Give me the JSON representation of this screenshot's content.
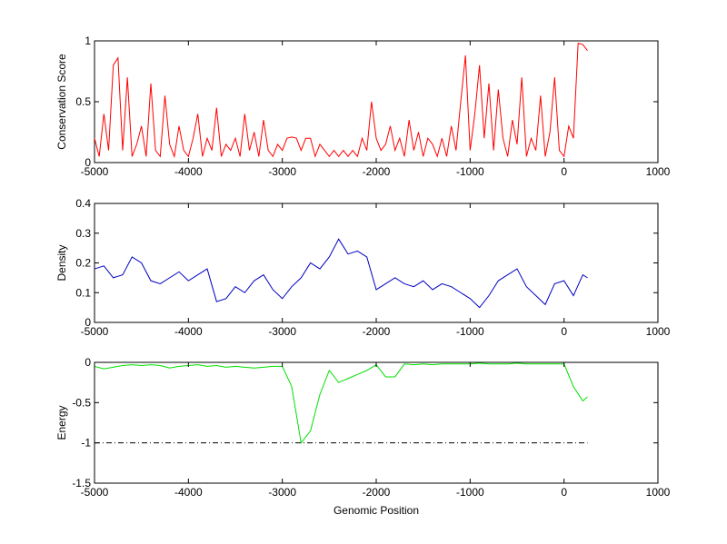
{
  "chart_data": [
    {
      "type": "line",
      "ylabel": "Conservation Score",
      "x": [
        -5000,
        -4950,
        -4900,
        -4850,
        -4800,
        -4750,
        -4700,
        -4650,
        -4600,
        -4550,
        -4500,
        -4450,
        -4400,
        -4350,
        -4300,
        -4250,
        -4200,
        -4150,
        -4100,
        -4050,
        -4000,
        -3950,
        -3900,
        -3850,
        -3800,
        -3750,
        -3700,
        -3650,
        -3600,
        -3550,
        -3500,
        -3450,
        -3400,
        -3350,
        -3300,
        -3250,
        -3200,
        -3150,
        -3100,
        -3050,
        -3000,
        -2950,
        -2900,
        -2850,
        -2800,
        -2750,
        -2700,
        -2650,
        -2600,
        -2550,
        -2500,
        -2450,
        -2400,
        -2350,
        -2300,
        -2250,
        -2200,
        -2150,
        -2100,
        -2050,
        -2000,
        -1950,
        -1900,
        -1850,
        -1800,
        -1750,
        -1700,
        -1650,
        -1600,
        -1550,
        -1500,
        -1450,
        -1400,
        -1350,
        -1300,
        -1250,
        -1200,
        -1150,
        -1100,
        -1050,
        -1000,
        -950,
        -900,
        -850,
        -800,
        -750,
        -700,
        -650,
        -600,
        -550,
        -500,
        -450,
        -400,
        -350,
        -300,
        -250,
        -200,
        -150,
        -100,
        -50,
        0,
        50,
        100,
        150,
        200,
        250
      ],
      "series": [
        {
          "color": "#ff0000",
          "values": [
            0.2,
            0.05,
            0.4,
            0.1,
            0.8,
            0.86,
            0.1,
            0.7,
            0.05,
            0.15,
            0.3,
            0.05,
            0.65,
            0.1,
            0.05,
            0.55,
            0.15,
            0.05,
            0.3,
            0.1,
            0.05,
            0.2,
            0.4,
            0.05,
            0.2,
            0.1,
            0.45,
            0.05,
            0.15,
            0.1,
            0.2,
            0.05,
            0.4,
            0.1,
            0.25,
            0.05,
            0.35,
            0.1,
            0.05,
            0.15,
            0.1,
            0.2,
            0.21,
            0.2,
            0.1,
            0.2,
            0.2,
            0.05,
            0.15,
            0.1,
            0.05,
            0.1,
            0.05,
            0.1,
            0.05,
            0.1,
            0.05,
            0.2,
            0.1,
            0.5,
            0.2,
            0.1,
            0.15,
            0.3,
            0.1,
            0.2,
            0.05,
            0.35,
            0.1,
            0.25,
            0.05,
            0.2,
            0.15,
            0.05,
            0.2,
            0.05,
            0.3,
            0.1,
            0.5,
            0.88,
            0.1,
            0.4,
            0.8,
            0.2,
            0.65,
            0.1,
            0.6,
            0.2,
            0.05,
            0.35,
            0.15,
            0.7,
            0.05,
            0.2,
            0.1,
            0.55,
            0.05,
            0.25,
            0.7,
            0.1,
            0.05,
            0.3,
            0.2,
            0.98,
            0.97,
            0.92
          ]
        }
      ],
      "xlim": [
        -5000,
        1000
      ],
      "xticks": [
        -5000,
        -4000,
        -3000,
        -2000,
        -1000,
        0,
        1000
      ],
      "ylim": [
        0,
        1
      ],
      "yticks": [
        0,
        0.5,
        1
      ]
    },
    {
      "type": "line",
      "ylabel": "Density",
      "x": [
        -5000,
        -4900,
        -4800,
        -4700,
        -4600,
        -4500,
        -4400,
        -4300,
        -4200,
        -4100,
        -4000,
        -3900,
        -3800,
        -3700,
        -3600,
        -3500,
        -3400,
        -3300,
        -3200,
        -3100,
        -3000,
        -2900,
        -2800,
        -2700,
        -2600,
        -2500,
        -2400,
        -2300,
        -2200,
        -2100,
        -2000,
        -1900,
        -1800,
        -1700,
        -1600,
        -1500,
        -1400,
        -1300,
        -1200,
        -1100,
        -1000,
        -900,
        -800,
        -700,
        -600,
        -500,
        -400,
        -300,
        -200,
        -100,
        0,
        100,
        200,
        250
      ],
      "series": [
        {
          "color": "#0000c0",
          "values": [
            0.18,
            0.19,
            0.15,
            0.16,
            0.22,
            0.2,
            0.14,
            0.13,
            0.15,
            0.17,
            0.14,
            0.16,
            0.18,
            0.07,
            0.08,
            0.12,
            0.1,
            0.14,
            0.16,
            0.11,
            0.08,
            0.12,
            0.15,
            0.2,
            0.18,
            0.22,
            0.28,
            0.23,
            0.24,
            0.22,
            0.11,
            0.13,
            0.15,
            0.13,
            0.12,
            0.14,
            0.11,
            0.13,
            0.12,
            0.1,
            0.08,
            0.05,
            0.09,
            0.14,
            0.16,
            0.18,
            0.12,
            0.09,
            0.06,
            0.13,
            0.14,
            0.09,
            0.16,
            0.15
          ]
        }
      ],
      "xlim": [
        -5000,
        1000
      ],
      "xticks": [
        -5000,
        -4000,
        -3000,
        -2000,
        -1000,
        0,
        1000
      ],
      "ylim": [
        0,
        0.4
      ],
      "yticks": [
        0,
        0.1,
        0.2,
        0.3,
        0.4
      ]
    },
    {
      "type": "line",
      "ylabel": "Energy",
      "xlabel": "Genomic Position",
      "x": [
        -5000,
        -4900,
        -4800,
        -4700,
        -4600,
        -4500,
        -4400,
        -4300,
        -4200,
        -4100,
        -4000,
        -3900,
        -3800,
        -3700,
        -3600,
        -3500,
        -3400,
        -3300,
        -3200,
        -3100,
        -3000,
        -2900,
        -2800,
        -2700,
        -2600,
        -2500,
        -2400,
        -2300,
        -2200,
        -2100,
        -2000,
        -1900,
        -1800,
        -1700,
        -1600,
        -1500,
        -1400,
        -1300,
        -1200,
        -1100,
        -1000,
        -900,
        -800,
        -700,
        -600,
        -500,
        -400,
        -300,
        -200,
        -100,
        0,
        100,
        200,
        250
      ],
      "series": [
        {
          "color": "#00e000",
          "values": [
            -0.05,
            -0.08,
            -0.06,
            -0.04,
            -0.03,
            -0.04,
            -0.03,
            -0.04,
            -0.07,
            -0.05,
            -0.04,
            -0.03,
            -0.05,
            -0.04,
            -0.06,
            -0.05,
            -0.06,
            -0.07,
            -0.06,
            -0.05,
            -0.05,
            -0.3,
            -1,
            -0.85,
            -0.4,
            -0.1,
            -0.25,
            -0.2,
            -0.15,
            -0.1,
            -0.03,
            -0.18,
            -0.18,
            -0.02,
            -0.03,
            -0.02,
            -0.03,
            -0.02,
            -0.02,
            -0.02,
            -0.02,
            -0.01,
            -0.02,
            -0.02,
            -0.02,
            -0.01,
            -0.02,
            -0.02,
            -0.02,
            -0.02,
            -0.02,
            -0.3,
            -0.48,
            -0.43
          ]
        }
      ],
      "reference_line": {
        "y": -1,
        "x": [
          -5000,
          250
        ],
        "color": "#000000",
        "style": "dashdot"
      },
      "xlim": [
        -5000,
        1000
      ],
      "xticks": [
        -5000,
        -4000,
        -3000,
        -2000,
        -1000,
        0,
        1000
      ],
      "ylim": [
        -1.5,
        0
      ],
      "yticks": [
        -1.5,
        -1,
        -0.5,
        0
      ]
    }
  ]
}
